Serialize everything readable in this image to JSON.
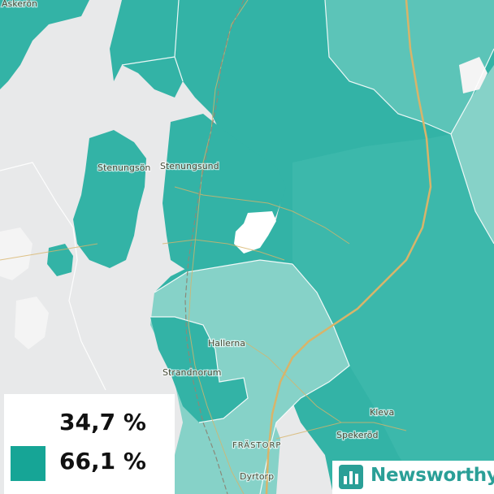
{
  "map": {
    "places": [
      "Askerön",
      "Stenungsön",
      "Stenungsund",
      "Hallerna",
      "Strandnorum",
      "Kleva",
      "Spekeröd",
      "FRÄSTORP",
      "Dyrtorp"
    ],
    "colors": {
      "background": "#e8e9ea",
      "water_outline": "#ffffff",
      "light_district": "#86d2c8",
      "mid_district": "#5cc4b8",
      "dark_district": "#33b3a6",
      "highlight_district": "#ffffff",
      "road": "#d8b46a"
    }
  },
  "legend": {
    "items": [
      {
        "value": "34,7 %",
        "color": "#ffffff"
      },
      {
        "value": "66,1 %",
        "color": "#16a596"
      }
    ]
  },
  "brand": {
    "name": "Newsworthy",
    "color": "#2a9f97"
  }
}
